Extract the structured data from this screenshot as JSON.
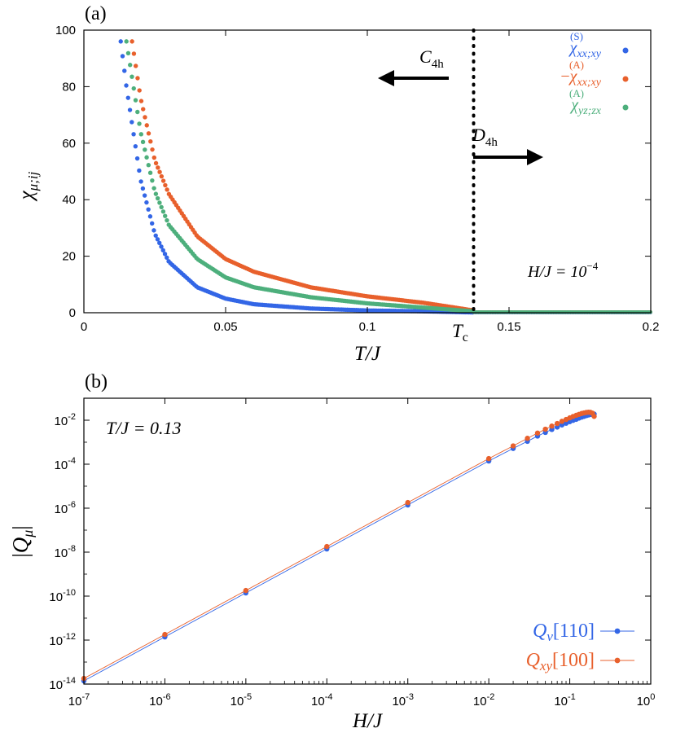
{
  "chart_data": [
    {
      "panel": "(a)",
      "type": "scatter",
      "title": "",
      "xlabel": "T/J",
      "ylabel": "χ_{μ;ij}",
      "xlim": [
        0,
        0.2
      ],
      "ylim": [
        0,
        100
      ],
      "xticks": [
        {
          "value": 0,
          "label": "0"
        },
        {
          "value": 0.05,
          "label": "0.05"
        },
        {
          "value": 0.1,
          "label": "0.1"
        },
        {
          "value": 0.15,
          "label": "0.15"
        },
        {
          "value": 0.2,
          "label": "0.2"
        }
      ],
      "yticks": [
        {
          "value": 0,
          "label": "0"
        },
        {
          "value": 20,
          "label": "20"
        },
        {
          "value": 40,
          "label": "40"
        },
        {
          "value": 60,
          "label": "60"
        },
        {
          "value": 80,
          "label": "80"
        },
        {
          "value": 100,
          "label": "100"
        }
      ],
      "Tc": 0.1375,
      "tc_label": {
        "main": "T",
        "sub": "c"
      },
      "field_label": "H/J = 10",
      "field_exponent": "−4",
      "phase_left": {
        "main": "C",
        "sub": "4h"
      },
      "phase_right": {
        "main": "D",
        "sub": "4h"
      },
      "series": [
        {
          "name": "χ_{xx;xy}^{(S)}",
          "main": "χ",
          "sup": "(S)",
          "sub": "xx;xy",
          "prefix": "",
          "color": "#3366e6",
          "x": [
            0.013,
            0.015,
            0.02,
            0.025,
            0.03,
            0.04,
            0.05,
            0.06,
            0.08,
            0.1,
            0.12,
            0.1375,
            0.2
          ],
          "y": [
            96,
            80,
            47,
            28,
            18,
            9,
            5,
            3,
            1.5,
            0.8,
            0.5,
            0.1,
            0.1
          ]
        },
        {
          "name": "−χ_{xx;xy}^{(A)}",
          "main": "χ",
          "sup": "(A)",
          "sub": "xx;xy",
          "prefix": "−",
          "color": "#e8602c",
          "x": [
            0.017,
            0.02,
            0.025,
            0.03,
            0.04,
            0.05,
            0.06,
            0.08,
            0.1,
            0.12,
            0.1375,
            0.2
          ],
          "y": [
            96,
            76,
            54,
            42,
            27,
            19,
            14.5,
            9,
            5.8,
            3.5,
            0.8,
            0.2
          ]
        },
        {
          "name": "χ_{yz;zx}^{(A)}",
          "main": "χ",
          "sup": "(A)",
          "sub": "yz;zx",
          "prefix": "",
          "color": "#4daf7c",
          "x": [
            0.015,
            0.02,
            0.025,
            0.03,
            0.04,
            0.05,
            0.06,
            0.08,
            0.1,
            0.12,
            0.1375,
            0.2
          ],
          "y": [
            96,
            64,
            43,
            31,
            19,
            12.5,
            9,
            5.5,
            3.3,
            1.8,
            0.5,
            0.2
          ]
        }
      ]
    },
    {
      "panel": "(b)",
      "type": "scatter",
      "scale": "log-log",
      "title": "",
      "xlabel": "H/J",
      "ylabel": "|Q_μ|",
      "annotation": "T/J = 0.13",
      "xlim": [
        1e-07,
        1
      ],
      "ylim": [
        1e-14,
        0.1
      ],
      "xticks": [
        {
          "value": 1e-07,
          "base": "10",
          "exp": "-7"
        },
        {
          "value": 1e-06,
          "base": "10",
          "exp": "-6"
        },
        {
          "value": 1e-05,
          "base": "10",
          "exp": "-5"
        },
        {
          "value": 0.0001,
          "base": "10",
          "exp": "-4"
        },
        {
          "value": 0.001,
          "base": "10",
          "exp": "-3"
        },
        {
          "value": 0.01,
          "base": "10",
          "exp": "-2"
        },
        {
          "value": 0.1,
          "base": "10",
          "exp": "-1"
        },
        {
          "value": 1,
          "base": "10",
          "exp": "0"
        }
      ],
      "yticks": [
        {
          "value": 1e-14,
          "base": "10",
          "exp": "-14"
        },
        {
          "value": 1e-12,
          "base": "10",
          "exp": "-12"
        },
        {
          "value": 1e-10,
          "base": "10",
          "exp": "-10"
        },
        {
          "value": 1e-08,
          "base": "10",
          "exp": "-8"
        },
        {
          "value": 1e-06,
          "base": "10",
          "exp": "-6"
        },
        {
          "value": 0.0001,
          "base": "10",
          "exp": "-4"
        },
        {
          "value": 0.01,
          "base": "10",
          "exp": "-2"
        }
      ],
      "series": [
        {
          "name": "Q_v[110]",
          "main": "Q",
          "sub": "v",
          "bracket": "[110]",
          "color": "#3366e6",
          "x": [
            1e-07,
            1e-06,
            1e-05,
            0.0001,
            0.001,
            0.01,
            0.02,
            0.03,
            0.04,
            0.05,
            0.06,
            0.07,
            0.08,
            0.09,
            0.1,
            0.11,
            0.12,
            0.13,
            0.14,
            0.15,
            0.16,
            0.17,
            0.18,
            0.19,
            0.2
          ],
          "y": [
            1.4e-14,
            1.4e-12,
            1.4e-10,
            1.4e-08,
            1.4e-06,
            0.00014,
            0.00052,
            0.0011,
            0.0019,
            0.0028,
            0.0038,
            0.0049,
            0.0061,
            0.0073,
            0.0086,
            0.0099,
            0.011,
            0.0125,
            0.0138,
            0.015,
            0.0162,
            0.0173,
            0.0182,
            0.0188,
            0.019
          ]
        },
        {
          "name": "Q_xy[100]",
          "main": "Q",
          "sub": "xy",
          "bracket": "[100]",
          "color": "#e8602c",
          "x": [
            1e-07,
            1e-06,
            1e-05,
            0.0001,
            0.001,
            0.01,
            0.02,
            0.03,
            0.04,
            0.05,
            0.06,
            0.07,
            0.08,
            0.09,
            0.1,
            0.11,
            0.12,
            0.13,
            0.14,
            0.15,
            0.16,
            0.17,
            0.18,
            0.19,
            0.2
          ],
          "y": [
            1.8e-14,
            1.8e-12,
            1.8e-10,
            1.8e-08,
            1.8e-06,
            0.00018,
            0.00068,
            0.0015,
            0.0026,
            0.0039,
            0.0054,
            0.0071,
            0.0089,
            0.0108,
            0.0128,
            0.0148,
            0.0167,
            0.0185,
            0.0202,
            0.0215,
            0.0225,
            0.023,
            0.0228,
            0.021,
            0.015
          ]
        }
      ]
    }
  ]
}
